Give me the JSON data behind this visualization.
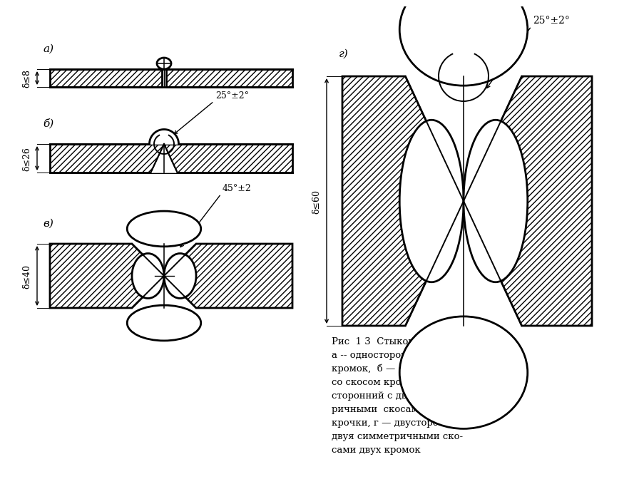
{
  "bg_color": "#ffffff",
  "label_a": "а)",
  "label_b": "б)",
  "label_v": "в)",
  "label_g": "г)",
  "dim_a": "δ≤8",
  "dim_b": "δ≤26",
  "dim_v": "δ≤40",
  "dim_g": "δ≤60",
  "angle_b": "25°±2°",
  "angle_v": "45°±2",
  "angle_g": "25°±2°",
  "cap1": "Рис  1 3  Стыковые швы.",
  "cap2": "а -- односторонний без скоса",
  "cap3": "кромок,  б — односторонний",
  "cap4": "со скосом кромок, в — дву-",
  "cap5": "сторонний с двумя симчет-",
  "cap6": "ричными  скосами  одной",
  "cap7": "крочки, г — двусторонний с",
  "cap8": "двуя симметричными ско-",
  "cap9": "сами двух кромок"
}
